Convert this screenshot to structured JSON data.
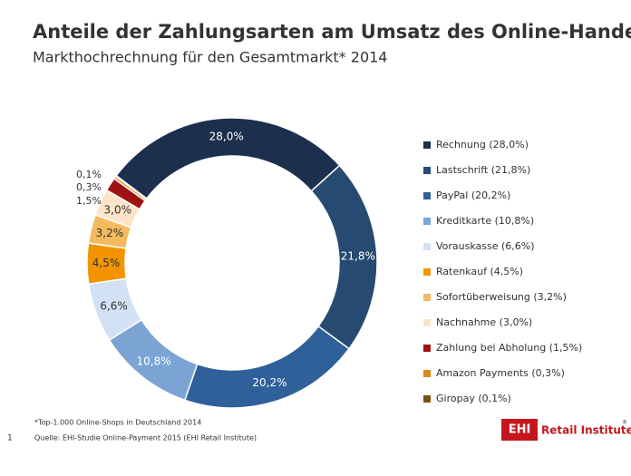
{
  "chart_data": {
    "type": "pie",
    "donut": true,
    "title": "Anteile der Zahlungsarten am Umsatz des Online-Handels",
    "subtitle": "Markthochrechnung  für den Gesamtmarkt*  2014",
    "categories": [
      "Rechnung (28,0%)",
      "Lastschrift (21,8%)",
      "PayPal (20,2%)",
      "Kreditkarte (10,8%)",
      "Vorauskasse (6,6%)",
      "Ratenkauf (4,5%)",
      "Sofortüberweisung (3,2%)",
      "Nachnahme (3,0%)",
      "Zahlung bei Abholung (1,5%)",
      "Amazon Payments (0,3%)",
      "Giropay (0,1%)"
    ],
    "values": [
      28.0,
      21.8,
      20.2,
      10.8,
      6.6,
      4.5,
      3.2,
      3.0,
      1.5,
      0.3,
      0.1
    ],
    "value_labels": [
      "28,0%",
      "21,8%",
      "20,2%",
      "10,8%",
      "6,6%",
      "4,5%",
      "3,2%",
      "3,0%",
      "1,5%",
      "0,3%",
      "0,1%"
    ],
    "colors": [
      "#1c2f4d",
      "#264a71",
      "#2f6099",
      "#7ba4d4",
      "#d2e2f4",
      "#f29400",
      "#f5b95f",
      "#fbe4c8",
      "#a01212",
      "#d98a1e",
      "#7a5210"
    ],
    "footnote": "*Top-1.000 Online-Shops in Deutschland 2014",
    "source": "Quelle: EHI-Studie Online-Payment 2015 (EHI Retail Institute)",
    "page_number": "1",
    "logo": {
      "mark": "EHI",
      "text": "Retail Institute",
      "registered": "®"
    }
  }
}
